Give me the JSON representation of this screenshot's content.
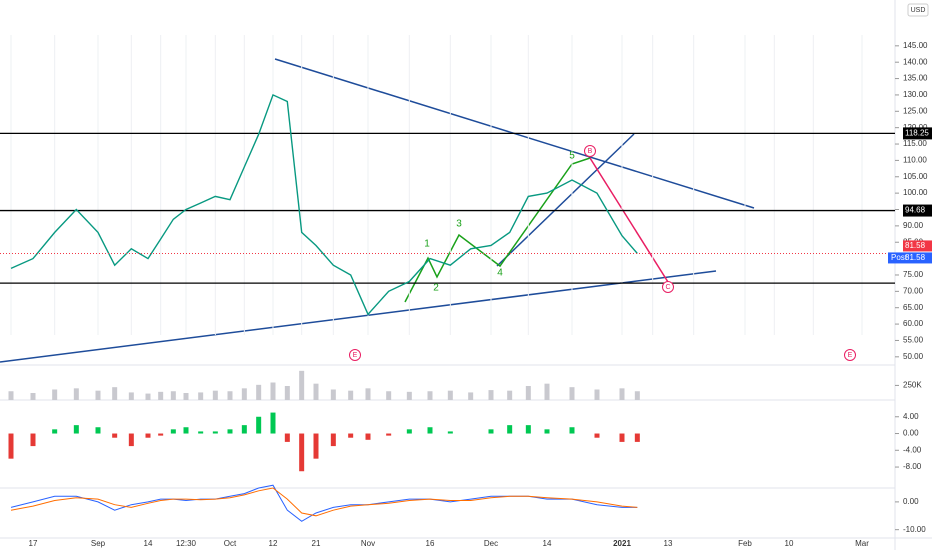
{
  "chart_data": [
    {
      "type": "line",
      "currency": "USD",
      "categories": [
        null,
        "17",
        null,
        null,
        "Sep",
        null,
        null,
        "14",
        null,
        null,
        "12:30",
        null,
        null,
        "Oct",
        null,
        null,
        "12",
        null,
        null,
        "21",
        null,
        null,
        "Nov",
        null,
        null,
        "16",
        null,
        null,
        "Dec",
        null,
        null,
        "14",
        null,
        null,
        "2021",
        null,
        null,
        "13",
        null,
        null,
        "Feb",
        null,
        null,
        "10",
        null,
        null,
        "Mar"
      ],
      "series": [
        {
          "color": "#089981",
          "values": [
            77,
            80,
            88,
            95,
            88,
            78,
            83,
            80,
            86,
            92,
            95,
            97,
            99,
            98,
            108,
            118,
            130,
            128,
            88,
            84,
            78,
            75,
            63,
            70,
            73,
            80,
            78,
            83,
            84,
            88,
            99,
            100,
            104,
            100,
            87,
            81.58,
            null,
            null,
            null,
            null,
            null,
            null,
            null,
            null,
            null,
            null,
            null
          ]
        }
      ],
      "ylim": [
        47.5,
        159
      ],
      "yticks": [
        {
          "value": 145,
          "label": "145.00"
        },
        {
          "value": 140,
          "label": "140.00"
        },
        {
          "value": 135,
          "label": "135.00"
        },
        {
          "value": 130,
          "label": "130.00"
        },
        {
          "value": 125,
          "label": "125.00"
        },
        {
          "value": 120,
          "label": "120.00"
        },
        {
          "value": 115,
          "label": "115.00"
        },
        {
          "value": 110,
          "label": "110.00"
        },
        {
          "value": 105,
          "label": "105.00"
        },
        {
          "value": 100,
          "label": "100.00"
        },
        {
          "value": 95,
          "label": "95.00"
        },
        {
          "value": 90,
          "label": "90.00"
        },
        {
          "value": 85,
          "label": "85.00"
        },
        {
          "value": 80,
          "label": "80.00"
        },
        {
          "value": 75,
          "label": "75.00"
        },
        {
          "value": 70,
          "label": "70.00"
        },
        {
          "value": 65,
          "label": "65.00"
        },
        {
          "value": 60,
          "label": "60.00"
        },
        {
          "value": 55,
          "label": "55.00"
        },
        {
          "value": 50,
          "label": "50.00"
        }
      ],
      "labeled_levels": [
        118.25,
        94.68
      ],
      "levels": [
        72.5
      ],
      "last_price": 81.58,
      "last_price_tag": "Post",
      "annotations": [
        "1",
        "2",
        "3",
        "4",
        "5",
        "B",
        "C",
        "E",
        "E"
      ]
    },
    {
      "type": "bar",
      "color": "#c9c9cf",
      "values": [
        150000,
        120000,
        180000,
        200000,
        160000,
        220000,
        130000,
        110000,
        140000,
        150000,
        120000,
        130000,
        160000,
        150000,
        200000,
        260000,
        300000,
        240000,
        500000,
        280000,
        180000,
        160000,
        200000,
        150000,
        140000,
        150000,
        160000,
        130000,
        170000,
        160000,
        240000,
        280000,
        220000,
        180000,
        200000,
        150000,
        null,
        null,
        null,
        null,
        null,
        null,
        null,
        null,
        null,
        null,
        null
      ],
      "ylim": [
        0,
        600000
      ],
      "yticks": [
        {
          "value": 250000,
          "label": "250K"
        }
      ]
    },
    {
      "type": "bar",
      "colors": {
        "up": "#00c853",
        "down": "#e53935"
      },
      "values": [
        -6,
        -3,
        1,
        2,
        1.5,
        -1,
        -3,
        -1,
        -0.5,
        1,
        1.5,
        0.5,
        0.5,
        1,
        2,
        4,
        5,
        -2,
        -9,
        -6,
        -3,
        -1,
        -1.5,
        -0.5,
        1,
        1.5,
        0.5,
        0,
        1,
        2,
        2,
        1,
        1.5,
        -1,
        -2,
        -2,
        null,
        null,
        null,
        null,
        null,
        null,
        null,
        null,
        null,
        null,
        null
      ],
      "ylim": [
        -13,
        8
      ],
      "yticks": [
        {
          "value": 4,
          "label": "4.00"
        },
        {
          "value": 0,
          "label": "0.00"
        },
        {
          "value": -4,
          "label": "-4.00"
        },
        {
          "value": -8,
          "label": "-8.00"
        }
      ]
    },
    {
      "type": "line",
      "series": [
        {
          "color": "#2962ff",
          "values": [
            -2,
            0,
            2,
            2,
            0,
            -3,
            -1,
            0,
            1,
            1,
            0.5,
            1,
            1,
            2,
            3,
            5,
            6,
            -3,
            -7,
            -4,
            -2,
            -1,
            -1,
            0,
            1,
            1,
            0,
            1,
            2,
            2,
            2,
            1,
            1,
            -1,
            -2,
            -2,
            null,
            null,
            null,
            null,
            null,
            null,
            null,
            null,
            null,
            null,
            null
          ]
        },
        {
          "color": "#ff6d00",
          "values": [
            -3,
            -1.5,
            0.5,
            1.5,
            1,
            -1,
            -2,
            -0.5,
            0.5,
            1,
            1,
            0.8,
            1,
            1.5,
            2.5,
            4,
            5,
            1,
            -4,
            -5,
            -3,
            -1.5,
            -1,
            -0.5,
            0.5,
            1,
            0.5,
            0.5,
            1.5,
            2,
            2,
            1.5,
            1,
            0,
            -1.5,
            -2,
            null,
            null,
            null,
            null,
            null,
            null,
            null,
            null,
            null,
            null,
            null
          ]
        }
      ],
      "ylim": [
        -13,
        5
      ],
      "yticks": [
        {
          "value": 0,
          "label": "0.00"
        },
        {
          "value": -10,
          "label": "-10.00"
        }
      ]
    }
  ]
}
